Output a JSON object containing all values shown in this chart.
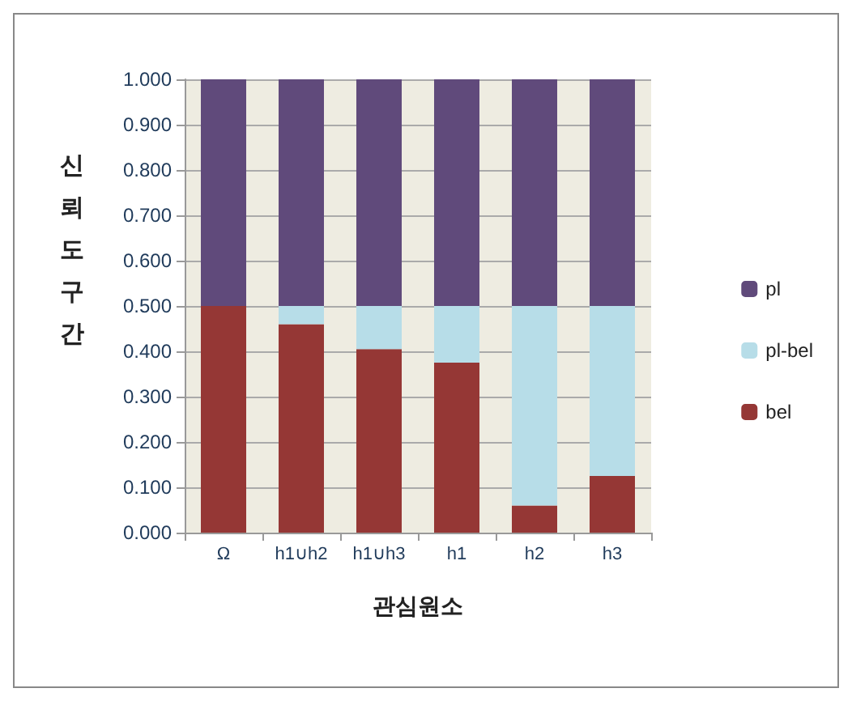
{
  "chart_data": {
    "type": "bar",
    "stacked": true,
    "xlabel": "관심원소",
    "ylabel": "신뢰도구간",
    "categories": [
      "Ω",
      "h1∪h2",
      "h1∪h3",
      "h1",
      "h2",
      "h3"
    ],
    "series": [
      {
        "name": "bel",
        "color": "#953735",
        "values": [
          0.5,
          0.46,
          0.405,
          0.375,
          0.06,
          0.125
        ]
      },
      {
        "name": "pl-bel",
        "color": "#b7dde8",
        "values": [
          0,
          0.04,
          0.095,
          0.125,
          0.44,
          0.375
        ]
      },
      {
        "name": "pl",
        "color": "#604a7b",
        "values": [
          0.5,
          0.5,
          0.5,
          0.5,
          0.5,
          0.5
        ]
      }
    ],
    "ylim": [
      0,
      1
    ],
    "yticks": [
      {
        "value": 0,
        "label": "0.000"
      },
      {
        "value": 0.1,
        "label": "0.100"
      },
      {
        "value": 0.2,
        "label": "0.200"
      },
      {
        "value": 0.3,
        "label": "0.300"
      },
      {
        "value": 0.4,
        "label": "0.400"
      },
      {
        "value": 0.5,
        "label": "0.500"
      },
      {
        "value": 0.6,
        "label": "0.600"
      },
      {
        "value": 0.7,
        "label": "0.700"
      },
      {
        "value": 0.8,
        "label": "0.800"
      },
      {
        "value": 0.9,
        "label": "0.900"
      },
      {
        "value": 1,
        "label": "1.000"
      }
    ],
    "grid": true,
    "legend": "right"
  }
}
